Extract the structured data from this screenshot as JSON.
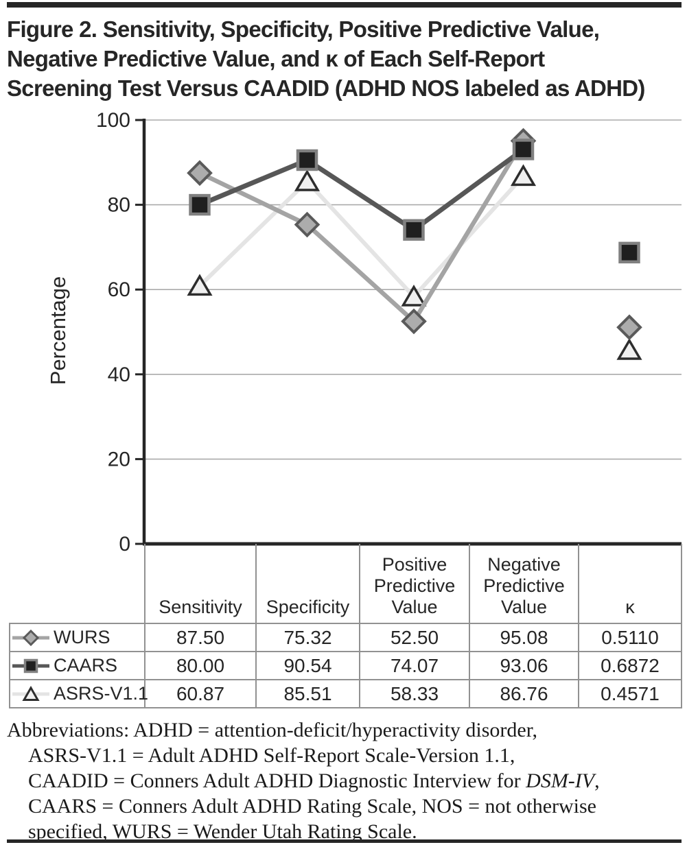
{
  "figure": {
    "title_lines": [
      "Figure 2. Sensitivity, Specificity, Positive Predictive Value,",
      "Negative Predictive Value, and κ of Each Self-Report",
      "Screening Test Versus CAADID (ADHD NOS labeled as ADHD)"
    ]
  },
  "chart_data": {
    "type": "line",
    "title": "",
    "xlabel": "",
    "ylabel": "Percentage",
    "ylim": [
      0,
      100
    ],
    "yticks": [
      0,
      20,
      40,
      60,
      80,
      100
    ],
    "grid": "horizontal",
    "legend_position": "table-left",
    "categories": [
      "Sensitivity",
      "Specificity",
      "Positive Predictive Value",
      "Negative Predictive Value",
      "κ"
    ],
    "note": "κ values are plotted ×100; κ markers are not connected to the line",
    "line_connects_first_n": 4,
    "series": [
      {
        "name": "WURS",
        "marker": "diamond",
        "values": [
          87.5,
          75.32,
          52.5,
          95.08,
          51.1
        ],
        "line_color": "#a4a4a4",
        "marker_fill": "#acacac",
        "marker_stroke": "#5a5a5a"
      },
      {
        "name": "CAARS",
        "marker": "square",
        "values": [
          80.0,
          90.54,
          74.07,
          93.06,
          68.72
        ],
        "line_color": "#575757",
        "marker_fill": "#1f1f1f",
        "marker_stroke": "#808080"
      },
      {
        "name": "ASRS-V1.1",
        "marker": "triangle",
        "values": [
          60.87,
          85.51,
          58.33,
          86.76,
          45.71
        ],
        "line_color": "#e4e4e4",
        "marker_fill": "#f0f0f0",
        "marker_stroke": "#2d2d2d"
      }
    ]
  },
  "table": {
    "columns": [
      "",
      "Sensitivity",
      "Specificity",
      "Positive\nPredictive\nValue",
      "Negative\nPredictive\nValue",
      "κ"
    ],
    "rows": [
      {
        "label": "WURS",
        "values": [
          "87.50",
          "75.32",
          "52.50",
          "95.08",
          "0.5110"
        ]
      },
      {
        "label": "CAARS",
        "values": [
          "80.00",
          "90.54",
          "74.07",
          "93.06",
          "0.6872"
        ]
      },
      {
        "label": "ASRS-V1.1",
        "values": [
          "60.87",
          "85.51",
          "58.33",
          "86.76",
          "0.4571"
        ]
      }
    ]
  },
  "abbreviations": {
    "lines": [
      {
        "indent": false,
        "parts": [
          {
            "text": "Abbreviations: ADHD = attention-deficit/hyperactivity disorder,",
            "italic": false
          }
        ]
      },
      {
        "indent": true,
        "parts": [
          {
            "text": "ASRS-V1.1 = Adult ADHD Self-Report Scale-Version 1.1,",
            "italic": false
          }
        ]
      },
      {
        "indent": true,
        "parts": [
          {
            "text": "CAADID = Conners Adult ADHD Diagnostic Interview for ",
            "italic": false
          },
          {
            "text": "DSM-IV",
            "italic": true
          },
          {
            "text": ",",
            "italic": false
          }
        ]
      },
      {
        "indent": true,
        "parts": [
          {
            "text": "CAARS = Conners Adult ADHD Rating Scale, NOS = not otherwise",
            "italic": false
          }
        ]
      },
      {
        "indent": true,
        "parts": [
          {
            "text": "specified, WURS = Wender Utah Rating Scale.",
            "italic": false
          }
        ]
      }
    ]
  },
  "colors": {
    "rule_bar": "#262626",
    "axis": "#262626",
    "gridline": "#aaaaaa",
    "table_border": "#919191",
    "text": "#262626"
  }
}
